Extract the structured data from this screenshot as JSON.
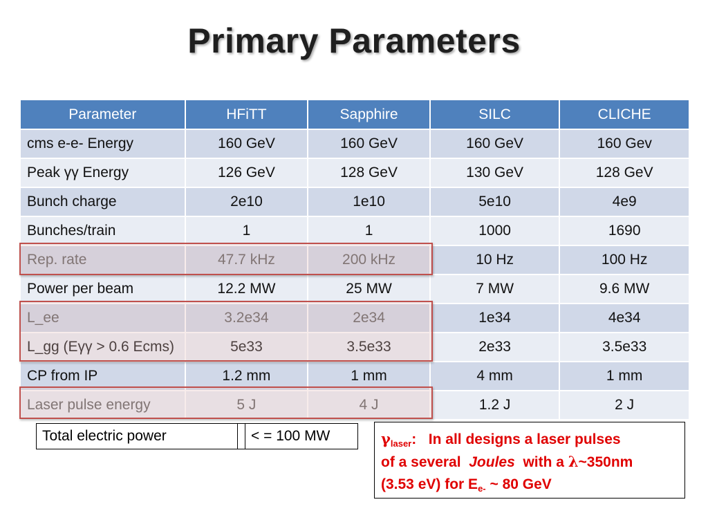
{
  "slide": {
    "title": "Primary Parameters"
  },
  "table": {
    "headers": [
      "Parameter",
      "HFiTT",
      "Sapphire",
      "SILC",
      "CLICHE"
    ],
    "rows": [
      [
        "cms e-e- Energy",
        "160 GeV",
        "160 GeV",
        "160 GeV",
        "160 Gev"
      ],
      [
        "Peak γγ Energy",
        "126 GeV",
        "128 GeV",
        "130 GeV",
        "128 GeV"
      ],
      [
        "Bunch charge",
        "2e10",
        "1e10",
        "5e10",
        "4e9"
      ],
      [
        "Bunches/train",
        "1",
        "1",
        "1000",
        "1690"
      ],
      [
        "Rep. rate",
        "47.7 kHz",
        "200 kHz",
        "10 Hz",
        "100 Hz"
      ],
      [
        "Power per beam",
        "12.2 MW",
        "25 MW",
        "7 MW",
        "9.6 MW"
      ],
      [
        "L_ee",
        "3.2e34",
        "2e34",
        "1e34",
        "4e34"
      ],
      [
        "L_gg (Eγγ > 0.6 Ecms)",
        "5e33",
        "3.5e33",
        "2e33",
        "3.5e33"
      ],
      [
        "CP from IP",
        "1.2  mm",
        "1 mm",
        "4 mm",
        "1 mm"
      ],
      [
        "Laser pulse energy",
        "5 J",
        "4 J",
        "1.2 J",
        "2 J"
      ]
    ]
  },
  "power": {
    "label": "Total electric power",
    "value": "< = 100 MW"
  },
  "note": {
    "gamma": "γ",
    "gamma_sub": "laser",
    "colon": ":",
    "line1_text": "In all designs a laser pulses",
    "line2_a": "of a several",
    "line2_italic": "Joules",
    "line2_b": "with a",
    "lambda": "λ",
    "line2_c": "~350nm",
    "line3_a": "(3.53 eV) for E",
    "line3_sub": "e-",
    "line3_b": "~ 80 GeV"
  },
  "colors": {
    "header_bg": "#4f81bd",
    "row_odd": "#d0d8e8",
    "row_even": "#e9edf4",
    "highlight_border": "#c0504d",
    "note_text": "#e00000"
  }
}
